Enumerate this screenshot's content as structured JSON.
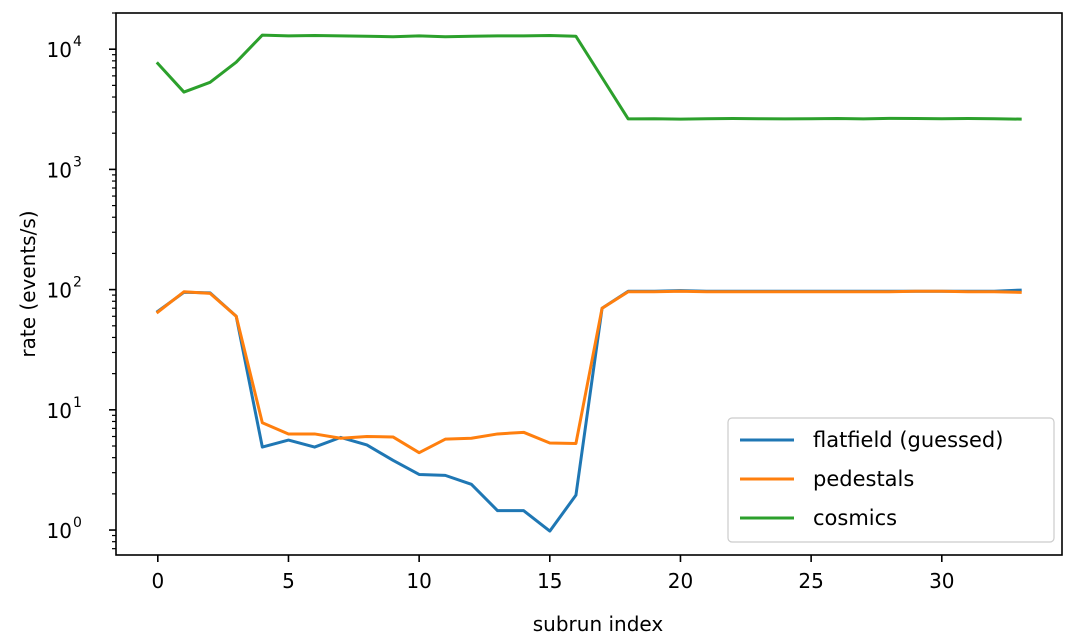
{
  "chart_data": {
    "type": "line",
    "title": "",
    "xlabel": "subrun index",
    "ylabel": "rate (events/s)",
    "yscale": "log",
    "xlim": [
      -1.6,
      34.6
    ],
    "ylim": [
      0.62,
      20000
    ],
    "grid": false,
    "legend_position": "lower-right",
    "x_ticks": [
      {
        "value": 0,
        "label": "0"
      },
      {
        "value": 5,
        "label": "5"
      },
      {
        "value": 10,
        "label": "10"
      },
      {
        "value": 15,
        "label": "15"
      },
      {
        "value": 20,
        "label": "20"
      },
      {
        "value": 25,
        "label": "25"
      },
      {
        "value": 30,
        "label": "30"
      }
    ],
    "y_ticks": [
      {
        "value": 1,
        "base": "10",
        "exp": "0"
      },
      {
        "value": 10,
        "base": "10",
        "exp": "1"
      },
      {
        "value": 100,
        "base": "10",
        "exp": "2"
      },
      {
        "value": 1000,
        "base": "10",
        "exp": "3"
      },
      {
        "value": 10000,
        "base": "10",
        "exp": "4"
      }
    ],
    "x": [
      0,
      1,
      2,
      3,
      4,
      5,
      6,
      7,
      8,
      9,
      10,
      11,
      12,
      13,
      14,
      15,
      16,
      17,
      18,
      19,
      20,
      21,
      22,
      23,
      24,
      25,
      26,
      27,
      28,
      29,
      30,
      31,
      32,
      33
    ],
    "series": [
      {
        "name": "flatfield (guessed)",
        "color": "#1f77b4",
        "values": [
          66,
          95,
          94,
          60,
          4.9,
          5.6,
          4.9,
          5.9,
          5.1,
          3.8,
          2.9,
          2.85,
          2.4,
          1.45,
          1.45,
          0.98,
          1.95,
          70,
          97,
          97,
          98,
          97,
          97,
          97,
          97,
          97,
          97,
          97,
          97,
          97,
          97,
          97,
          97,
          99
        ]
      },
      {
        "name": "pedestals",
        "color": "#ff7f0e",
        "values": [
          65,
          96,
          93,
          60,
          7.8,
          6.3,
          6.3,
          5.8,
          6.0,
          5.95,
          4.4,
          5.7,
          5.8,
          6.3,
          6.5,
          5.3,
          5.25,
          70,
          96,
          96,
          97,
          96,
          96,
          96,
          96,
          96,
          96,
          96,
          96,
          97,
          97,
          96,
          96,
          95
        ]
      },
      {
        "name": "cosmics",
        "color": "#2ca02c",
        "values": [
          7600,
          4400,
          5300,
          7800,
          13100,
          12900,
          13000,
          12900,
          12800,
          12700,
          12900,
          12700,
          12800,
          12900,
          12900,
          13000,
          12800,
          5800,
          2630,
          2640,
          2620,
          2640,
          2650,
          2640,
          2630,
          2640,
          2650,
          2630,
          2660,
          2650,
          2640,
          2650,
          2640,
          2620
        ]
      }
    ]
  }
}
